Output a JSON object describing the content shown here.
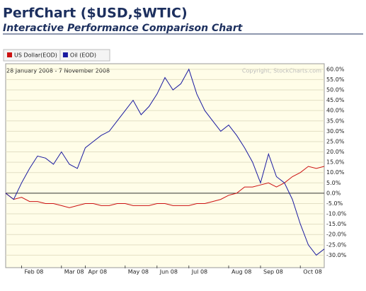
{
  "chart_data": {
    "type": "line",
    "title": "PerfChart ($USD,$WTIC)",
    "subtitle": "Interactive Performance Comparison Chart",
    "date_range": "28 January 2008 - 7 November 2008",
    "copyright": "Copyright, StockCharts.com",
    "categories": [
      null,
      null,
      "Feb 08",
      null,
      null,
      null,
      null,
      "Mar 08",
      null,
      null,
      "Apr 08",
      null,
      null,
      null,
      null,
      "May 08",
      null,
      null,
      null,
      "Jun 08",
      null,
      null,
      null,
      "Jul 08",
      null,
      null,
      null,
      null,
      "Aug 08",
      null,
      null,
      null,
      "Sep 08",
      null,
      null,
      null,
      null,
      "Oct 08",
      null,
      null,
      null
    ],
    "series": [
      {
        "name": "US Dollar(EOD)",
        "color": "#cc1111",
        "values": [
          0,
          -3,
          -2,
          -4,
          -4,
          -5,
          -5,
          -6,
          -7,
          -6,
          -5,
          -5,
          -6,
          -6,
          -5,
          -5,
          -6,
          -6,
          -6,
          -5,
          -5,
          -6,
          -6,
          -6,
          -5,
          -5,
          -4,
          -3,
          -1,
          0,
          3,
          3,
          4,
          5,
          3,
          5,
          8,
          10,
          13,
          12,
          13
        ]
      },
      {
        "name": "Oil (EOD)",
        "color": "#1a1aa0",
        "values": [
          0,
          -3,
          5,
          12,
          18,
          17,
          14,
          20,
          14,
          12,
          22,
          25,
          28,
          30,
          35,
          40,
          45,
          38,
          42,
          48,
          56,
          50,
          53,
          60,
          48,
          40,
          35,
          30,
          33,
          28,
          22,
          15,
          5,
          19,
          8,
          5,
          -3,
          -15,
          -25,
          -30,
          -27
        ]
      }
    ],
    "ylim": [
      -35,
      62
    ],
    "yticks": [
      {
        "value": 60,
        "label": "60.0%"
      },
      {
        "value": 55,
        "label": "55.0%"
      },
      {
        "value": 50,
        "label": "50.0%"
      },
      {
        "value": 45,
        "label": "45.0%"
      },
      {
        "value": 40,
        "label": "40.0%"
      },
      {
        "value": 35,
        "label": "35.0%"
      },
      {
        "value": 30,
        "label": "30.0%"
      },
      {
        "value": 25,
        "label": "25.0%"
      },
      {
        "value": 20,
        "label": "20.0%"
      },
      {
        "value": 15,
        "label": "15.0%"
      },
      {
        "value": 10,
        "label": "10.0%"
      },
      {
        "value": 5,
        "label": "5.0%"
      },
      {
        "value": 0,
        "label": "0.0%"
      },
      {
        "value": -5,
        "label": "-5.0%"
      },
      {
        "value": -10,
        "label": "-10.0%"
      },
      {
        "value": -15,
        "label": "-15.0%"
      },
      {
        "value": -20,
        "label": "-20.0%"
      },
      {
        "value": -25,
        "label": "-25.0%"
      },
      {
        "value": -30,
        "label": "-30.0%"
      }
    ],
    "grid": true
  }
}
